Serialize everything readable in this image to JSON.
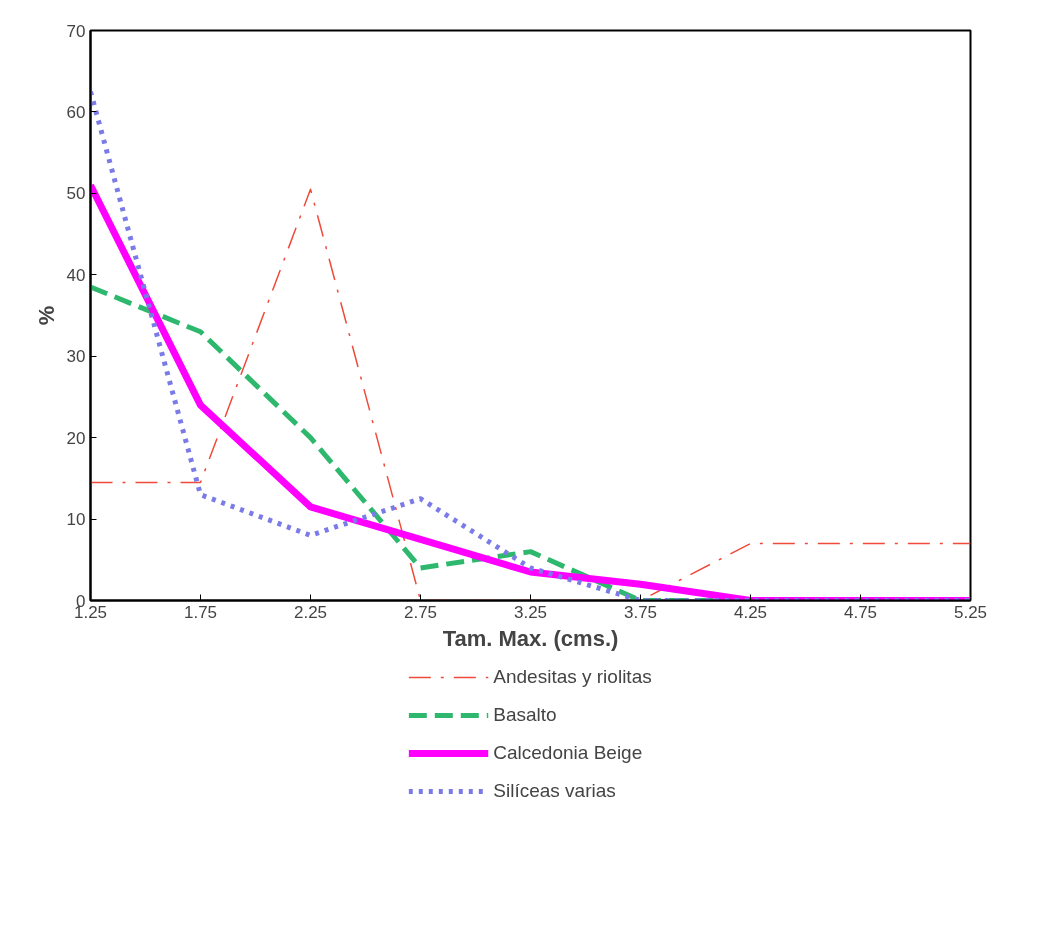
{
  "chart_data": {
    "type": "line",
    "x": [
      1.25,
      1.75,
      2.25,
      2.75,
      3.25,
      3.75,
      4.25,
      4.75,
      5.25
    ],
    "xlabel": "Tam. Max. (cms.)",
    "ylabel": "%",
    "xlim": [
      1.25,
      5.25
    ],
    "xticks": [
      1.25,
      1.75,
      2.25,
      2.75,
      3.25,
      3.75,
      4.25,
      4.75,
      5.25
    ],
    "ylim": [
      0,
      70
    ],
    "yticks": [
      0,
      10,
      20,
      30,
      40,
      50,
      60,
      70
    ],
    "grid": false,
    "legend": "bottom right",
    "marker": "none",
    "series": [
      {
        "name": "Andesitas y riolitas",
        "color": "#f04a3a",
        "line_style": "dashdot",
        "values": [
          14.5,
          14.5,
          50.5,
          0,
          0,
          0,
          7,
          7,
          7
        ]
      },
      {
        "name": "Basalto",
        "color": "#2eb86e",
        "line_style": "dashed",
        "values": [
          38.5,
          33,
          20,
          4,
          6,
          0,
          0,
          0,
          0
        ]
      },
      {
        "name": "Calcedonia Beige",
        "color": "#ff00ff",
        "line_style": "solid",
        "values": [
          51,
          24,
          11.5,
          7.5,
          3.5,
          2,
          0,
          0,
          0
        ]
      },
      {
        "name": "Silíceas varias",
        "color": "#7b7be8",
        "line_style": "dotted",
        "values": [
          62.5,
          13,
          8,
          12.5,
          4,
          0,
          0,
          0,
          0
        ]
      }
    ]
  }
}
